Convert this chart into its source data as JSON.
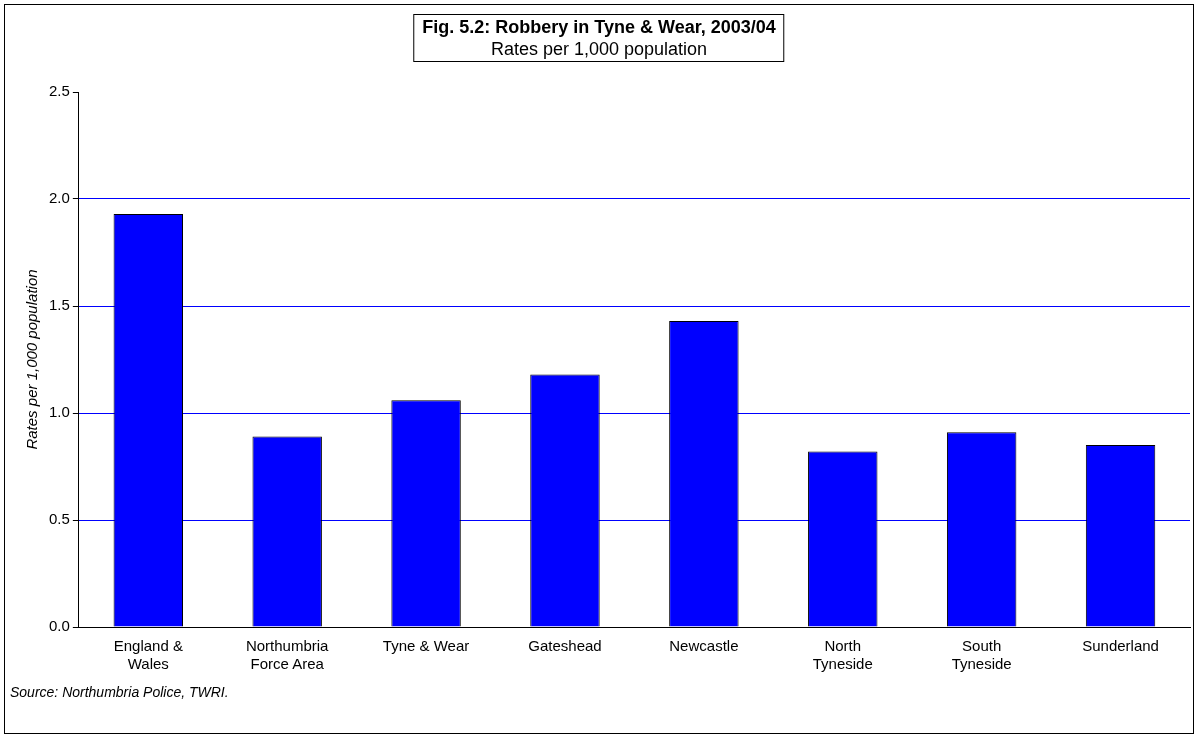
{
  "chart_data": {
    "type": "bar",
    "title": "Fig. 5.2: Robbery in Tyne & Wear, 2003/04",
    "subtitle": "Rates per 1,000 population",
    "ylabel": "Rates per 1,000 population",
    "categories": [
      "England & Wales",
      "Northumbria Force Area",
      "Tyne & Wear",
      "Gateshead",
      "Newcastle",
      "North Tyneside",
      "South Tyneside",
      "Sunderland"
    ],
    "values": [
      1.93,
      0.89,
      1.06,
      1.18,
      1.43,
      0.82,
      0.91,
      0.85
    ],
    "color": "#0000ff",
    "ylim": [
      0,
      2.5
    ],
    "yticks": [
      {
        "value": 0,
        "label": "0.0"
      },
      {
        "value": 0.5,
        "label": "0.5"
      },
      {
        "value": 1,
        "label": "1.0"
      },
      {
        "value": 1.5,
        "label": "1.5"
      },
      {
        "value": 2,
        "label": "2.0"
      },
      {
        "value": 2.5,
        "label": "2.5"
      }
    ],
    "grid": "y",
    "legend": false,
    "annotations": [
      "Source: Northumbria Police, TWRI."
    ]
  }
}
